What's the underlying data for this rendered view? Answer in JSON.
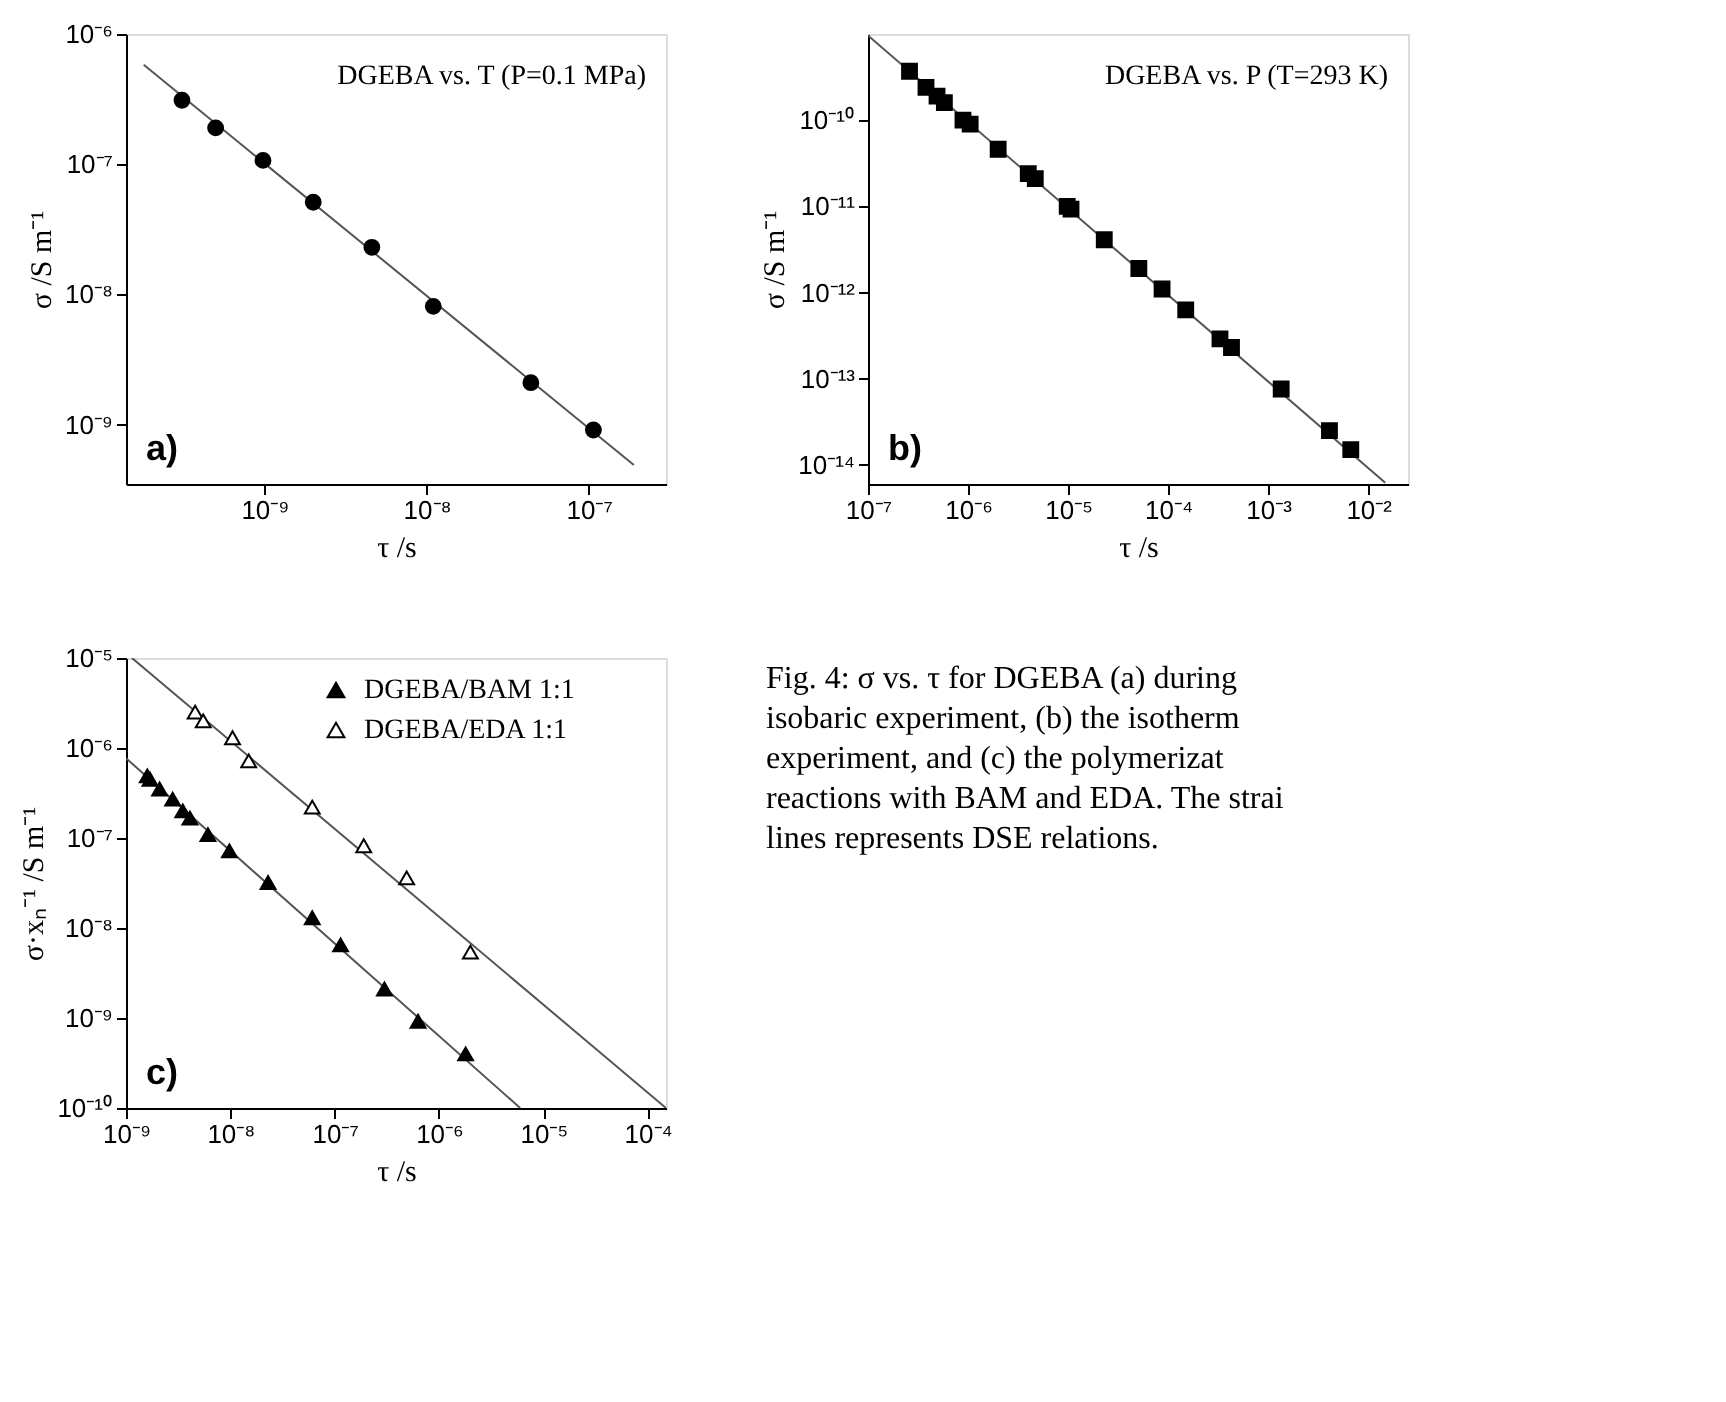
{
  "chart_data": [
    {
      "type": "scatter",
      "log": "xy",
      "grid": false,
      "legend": false,
      "xlabel": "τ /s",
      "ylabel": "σ /S m⁻¹",
      "xlim": [
        1.4e-10,
        3e-07
      ],
      "ylim": [
        3.5e-10,
        1e-06
      ],
      "xticks": [
        {
          "value": 1e-09,
          "label": "10⁻⁹"
        },
        {
          "value": 1e-08,
          "label": "10⁻⁸"
        },
        {
          "value": 1e-07,
          "label": "10⁻⁷"
        }
      ],
      "yticks": [
        {
          "value": 1e-09,
          "label": "10⁻⁹"
        },
        {
          "value": 1e-08,
          "label": "10⁻⁸"
        },
        {
          "value": 1e-07,
          "label": "10⁻⁷"
        },
        {
          "value": 1e-06,
          "label": "10⁻⁶"
        }
      ],
      "annotations": [
        "DGEBA vs. T (P=0.1 MPa)",
        "a)"
      ],
      "series": [
        {
          "type": "line",
          "color": "#555555",
          "line_style": "solid",
          "x": [
            1.8e-10,
            1.9e-07
          ],
          "values": [
            5.8e-07,
            4.9e-10
          ]
        },
        {
          "type": "scatter",
          "marker": "circle",
          "color": "#000000",
          "x": [
            3.1e-10,
            5e-10,
            9.8e-10,
            2e-09,
            4.6e-09,
            1.1e-08,
            4.4e-08,
            1.07e-07
          ],
          "values": [
            3.1e-07,
            1.9e-07,
            1.07e-07,
            5.1e-08,
            2.3e-08,
            8.1e-09,
            2.1e-09,
            9.1e-10
          ]
        }
      ]
    },
    {
      "type": "scatter",
      "log": "xy",
      "grid": false,
      "legend": false,
      "xlabel": "τ /s",
      "ylabel": "σ /S m⁻¹",
      "xlim": [
        1e-07,
        0.025
      ],
      "ylim": [
        6e-15,
        1e-09
      ],
      "xticks": [
        {
          "value": 1e-07,
          "label": "10⁻⁷"
        },
        {
          "value": 1e-06,
          "label": "10⁻⁶"
        },
        {
          "value": 1e-05,
          "label": "10⁻⁵"
        },
        {
          "value": 0.0001,
          "label": "10⁻⁴"
        },
        {
          "value": 0.001,
          "label": "10⁻³"
        },
        {
          "value": 0.01,
          "label": "10⁻²"
        }
      ],
      "yticks": [
        {
          "value": 1e-14,
          "label": "10⁻¹⁴"
        },
        {
          "value": 1e-13,
          "label": "10⁻¹³"
        },
        {
          "value": 1e-12,
          "label": "10⁻¹²"
        },
        {
          "value": 1e-11,
          "label": "10⁻¹¹"
        },
        {
          "value": 1e-10,
          "label": "10⁻¹⁰"
        }
      ],
      "annotations": [
        "DGEBA vs. P (T=293 K)",
        "b)"
      ],
      "series": [
        {
          "type": "line",
          "color": "#555555",
          "line_style": "solid",
          "x": [
            1e-07,
            0.0148
          ],
          "values": [
            9.6e-10,
            6.2e-15
          ]
        },
        {
          "type": "scatter",
          "marker": "square",
          "color": "#000000",
          "x": [
            2.6e-07,
            3.8e-07,
            4.9e-07,
            5.8e-07,
            8.9e-07,
            1.05e-06,
            2e-06,
            4e-06,
            4.7e-06,
            9.8e-06,
            1.07e-05,
            2.3e-05,
            5.1e-05,
            8.7e-05,
            0.00015,
            0.00033,
            0.00043,
            0.00135,
            0.0041,
            0.0067
          ],
          "values": [
            3.7e-10,
            2.4e-10,
            1.9e-10,
            1.6e-10,
            1e-10,
            9e-11,
            4.6e-11,
            2.4e-11,
            2.1e-11,
            1e-11,
            9.3e-12,
            4.1e-12,
            1.9e-12,
            1.1e-12,
            6.3e-13,
            2.9e-13,
            2.3e-13,
            7.6e-14,
            2.5e-14,
            1.5e-14
          ]
        }
      ]
    },
    {
      "type": "scatter",
      "log": "xy",
      "grid": false,
      "legend": "top right",
      "xlabel": "τ /s",
      "ylabel": "σ·xₙ⁻¹ /S m⁻¹",
      "xlim": [
        1e-09,
        0.00015
      ],
      "ylim": [
        1e-10,
        1e-05
      ],
      "xticks": [
        {
          "value": 1e-09,
          "label": "10⁻⁹"
        },
        {
          "value": 1e-08,
          "label": "10⁻⁸"
        },
        {
          "value": 1e-07,
          "label": "10⁻⁷"
        },
        {
          "value": 1e-06,
          "label": "10⁻⁶"
        },
        {
          "value": 1e-05,
          "label": "10⁻⁵"
        },
        {
          "value": 0.0001,
          "label": "10⁻⁴"
        }
      ],
      "yticks": [
        {
          "value": 1e-10,
          "label": "10⁻¹⁰"
        },
        {
          "value": 1e-09,
          "label": "10⁻⁹"
        },
        {
          "value": 1e-08,
          "label": "10⁻⁸"
        },
        {
          "value": 1e-07,
          "label": "10⁻⁷"
        },
        {
          "value": 1e-06,
          "label": "10⁻⁶"
        },
        {
          "value": 1e-05,
          "label": "10⁻⁵"
        }
      ],
      "annotations": [
        "c)"
      ],
      "series": [
        {
          "type": "line",
          "color": "#555555",
          "line_style": "solid",
          "x": [
            1e-09,
            6e-06
          ],
          "values": [
            7.7e-07,
            1e-10
          ]
        },
        {
          "type": "line",
          "color": "#555555",
          "line_style": "solid",
          "x": [
            1.14e-09,
            0.00015
          ],
          "values": [
            1e-05,
            1e-10
          ]
        },
        {
          "name": "DGEBA/BAM  1:1",
          "type": "scatter",
          "marker": "triangle",
          "color": "#000000",
          "x": [
            1.6e-09,
            1.7e-09,
            2.1e-09,
            2.8e-09,
            3.5e-09,
            4.1e-09,
            6.1e-09,
            9.8e-09,
            2.3e-08,
            6.1e-08,
            1.14e-07,
            3e-07,
            6.3e-07,
            1.8e-06
          ],
          "values": [
            4.9e-07,
            4.5e-07,
            3.5e-07,
            2.7e-07,
            2e-07,
            1.66e-07,
            1.09e-07,
            7.2e-08,
            3.2e-08,
            1.3e-08,
            6.5e-09,
            2.1e-09,
            9.2e-10,
            4e-10
          ]
        },
        {
          "name": "DGEBA/EDA  1:1",
          "type": "scatter",
          "marker": "triangle",
          "color": "#ffffff",
          "x": [
            4.6e-09,
            5.5e-09,
            1.05e-08,
            1.5e-08,
            6.1e-08,
            1.9e-07,
            4.9e-07,
            2e-06
          ],
          "values": [
            2.5e-06,
            2e-06,
            1.3e-06,
            7.2e-07,
            2.2e-07,
            8.2e-08,
            3.6e-08,
            5.4e-09
          ]
        }
      ]
    },
    {
      "type": "other",
      "annotations": [
        "Fig. 4: σ vs. τ for DGEBA (a) during",
        "isobaric experiment, (b) the isotherm",
        "experiment, and (c) the polymerizat",
        "reactions with BAM and EDA. The strai",
        "lines represents DSE relations."
      ]
    }
  ]
}
